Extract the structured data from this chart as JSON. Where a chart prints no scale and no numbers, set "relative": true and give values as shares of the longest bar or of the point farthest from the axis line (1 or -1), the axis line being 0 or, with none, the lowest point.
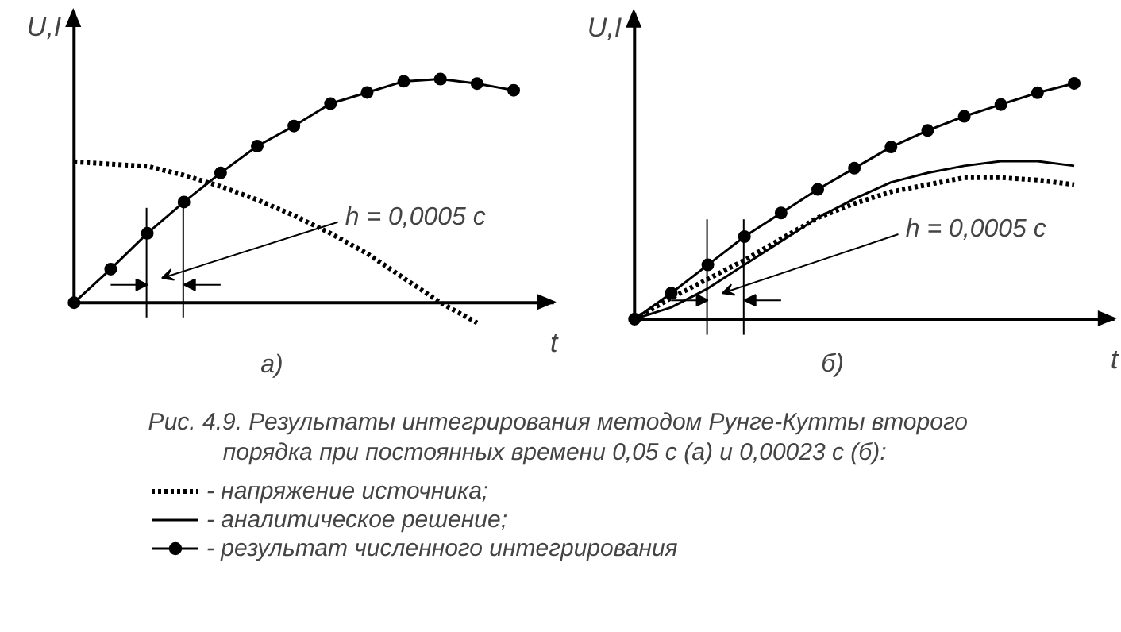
{
  "chart_data": [
    {
      "type": "line",
      "relative": true,
      "xlabel": "t",
      "ylabel": "U,I",
      "tick_labels": false,
      "grid": false,
      "annotations": [
        "а)",
        "h = 0,0005 с"
      ],
      "categories": [
        null,
        null,
        null,
        null,
        null,
        null,
        null,
        null,
        null,
        null,
        null,
        null,
        null
      ],
      "series": [
        {
          "color": "#000000",
          "line_style": "dotted",
          "marker": "none",
          "values": [
            0.63,
            0.62,
            0.61,
            0.57,
            0.52,
            0.46,
            0.39,
            0.31,
            0.22,
            0.11,
            0,
            -0.09,
            null
          ]
        },
        {
          "color": "#000000",
          "line_style": "solid",
          "marker": "circle",
          "values": [
            0,
            0.15,
            0.31,
            0.45,
            0.58,
            0.7,
            0.79,
            0.89,
            0.94,
            0.99,
            1.0,
            0.98,
            0.95
          ]
        }
      ]
    },
    {
      "type": "line",
      "relative": true,
      "xlabel": "t",
      "ylabel": "U,I",
      "tick_labels": false,
      "grid": false,
      "legend": "bottom",
      "annotations": [
        "б)",
        "h = 0,0005 с",
        "Рис. 4.9. Результаты интегрирования  методом Рунге-Кутты второго",
        "порядка  при постоянных времени 0,05 с (а) и 0,00023 с  (б):"
      ],
      "categories": [
        null,
        null,
        null,
        null,
        null,
        null,
        null,
        null,
        null,
        null,
        null,
        null,
        null
      ],
      "series": [
        {
          "name": "- напряжение источника;",
          "color": "#000000",
          "line_style": "dotted",
          "marker": "none",
          "values": [
            0,
            0.09,
            0.17,
            0.25,
            0.34,
            0.43,
            0.49,
            0.54,
            0.57,
            0.6,
            0.6,
            0.59,
            0.57
          ]
        },
        {
          "name": "- аналитическое решение;",
          "color": "#000000",
          "line_style": "solid",
          "marker": "none",
          "values": [
            0,
            0.05,
            0.13,
            0.23,
            0.33,
            0.43,
            0.51,
            0.58,
            0.62,
            0.65,
            0.67,
            0.67,
            0.65
          ]
        },
        {
          "name": "- результат численного интегрирования",
          "color": "#000000",
          "line_style": "solid",
          "marker": "circle",
          "values": [
            0,
            0.11,
            0.23,
            0.35,
            0.45,
            0.55,
            0.64,
            0.73,
            0.8,
            0.86,
            0.91,
            0.96,
            1.0
          ]
        }
      ]
    }
  ]
}
